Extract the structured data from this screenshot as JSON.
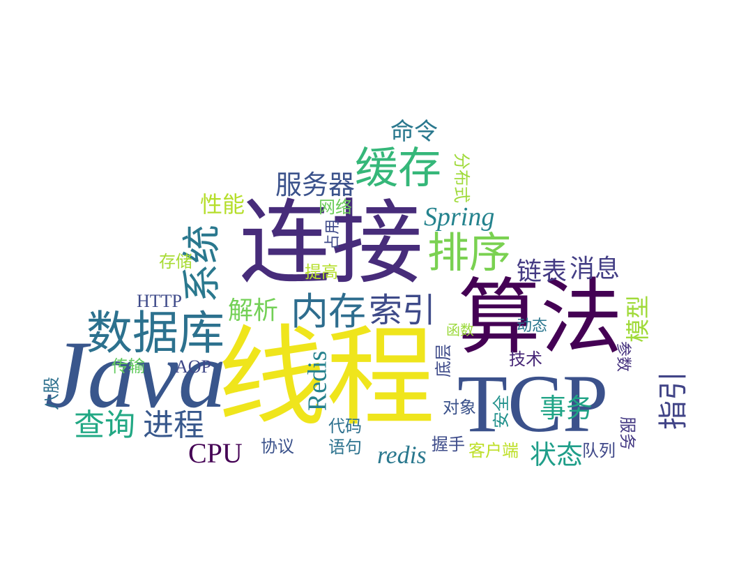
{
  "words": [
    {
      "id": "xiancheng",
      "text": "线程",
      "color": "#efe51c"
    },
    {
      "id": "lianjie",
      "text": "连接",
      "color": "#472c7a"
    },
    {
      "id": "suanfa",
      "text": "算法",
      "color": "#440154"
    },
    {
      "id": "java",
      "text": "Java",
      "color": "#39568c"
    },
    {
      "id": "tcp",
      "text": "TCP",
      "color": "#3b518b"
    },
    {
      "id": "shujuku",
      "text": "数据库",
      "color": "#2c718e"
    },
    {
      "id": "huancun",
      "text": "缓存",
      "color": "#35b779"
    },
    {
      "id": "paixu",
      "text": "排序",
      "color": "#7ad151"
    },
    {
      "id": "neicun",
      "text": "内存",
      "color": "#2e6d8e"
    },
    {
      "id": "suoyin",
      "text": "索引",
      "color": "#3e4a89"
    },
    {
      "id": "xitong",
      "text": "系统",
      "color": "#2a788e"
    },
    {
      "id": "chaxun",
      "text": "查询",
      "color": "#22a884"
    },
    {
      "id": "jincheng",
      "text": "进程",
      "color": "#38588c"
    },
    {
      "id": "fuwuqi",
      "text": "服务器",
      "color": "#3b528b"
    },
    {
      "id": "spring",
      "text": "Spring",
      "color": "#25838e"
    },
    {
      "id": "lianbiao",
      "text": "链表",
      "color": "#443a83"
    },
    {
      "id": "xiaoxi",
      "text": "消息",
      "color": "#433e85"
    },
    {
      "id": "jiexi",
      "text": "解析",
      "color": "#73d056"
    },
    {
      "id": "xingneng",
      "text": "性能",
      "color": "#b5de2b"
    },
    {
      "id": "mingling",
      "text": "命令",
      "color": "#2a788e"
    },
    {
      "id": "redis_v",
      "text": "Redis",
      "color": "#26828e"
    },
    {
      "id": "redis_l",
      "text": "redis",
      "color": "#2a788e"
    },
    {
      "id": "cpu",
      "text": "CPU",
      "color": "#440154"
    },
    {
      "id": "http",
      "text": "HTTP",
      "color": "#3e4a89"
    },
    {
      "id": "aop",
      "text": "AOP",
      "color": "#3f4788"
    },
    {
      "id": "shiwu",
      "text": "事务",
      "color": "#20a486"
    },
    {
      "id": "zhuangtai",
      "text": "状态",
      "color": "#1f9e89"
    },
    {
      "id": "moxing",
      "text": "模型",
      "color": "#a0da39"
    },
    {
      "id": "zhiyin",
      "text": "指引",
      "color": "#414487"
    },
    {
      "id": "fenbushi",
      "text": "分布式",
      "color": "#9fda3a"
    },
    {
      "id": "wangluo",
      "text": "网络",
      "color": "#6ccd5a"
    },
    {
      "id": "zhanyong",
      "text": "占用",
      "color": "#3e4989"
    },
    {
      "id": "tigao",
      "text": "提高",
      "color": "#b5de2b"
    },
    {
      "id": "cunchu",
      "text": "存储",
      "color": "#a8db34"
    },
    {
      "id": "chuanshu",
      "text": "传输",
      "color": "#63cb5f"
    },
    {
      "id": "bagu",
      "text": "八股",
      "color": "#2d708e"
    },
    {
      "id": "xieyi",
      "text": "协议",
      "color": "#3b528b"
    },
    {
      "id": "daima",
      "text": "代码",
      "color": "#2d708e"
    },
    {
      "id": "yuju",
      "text": "语句",
      "color": "#2c728e"
    },
    {
      "id": "woshou",
      "text": "握手",
      "color": "#3e4c8a"
    },
    {
      "id": "kehuduan",
      "text": "客户端",
      "color": "#bddf26"
    },
    {
      "id": "duilie",
      "text": "队列",
      "color": "#3f4889"
    },
    {
      "id": "fuwu",
      "text": "服务",
      "color": "#443983"
    },
    {
      "id": "canshu",
      "text": "参数",
      "color": "#46337f"
    },
    {
      "id": "jishu",
      "text": "技术",
      "color": "#482878"
    },
    {
      "id": "dongtai",
      "text": "动态",
      "color": "#2a768e"
    },
    {
      "id": "hanshu",
      "text": "函数",
      "color": "#9bd93c"
    },
    {
      "id": "diceng",
      "text": "底层",
      "color": "#3e4a89"
    },
    {
      "id": "duixiang",
      "text": "对象",
      "color": "#3b528b"
    },
    {
      "id": "anquan",
      "text": "安全",
      "color": "#21918c"
    }
  ]
}
